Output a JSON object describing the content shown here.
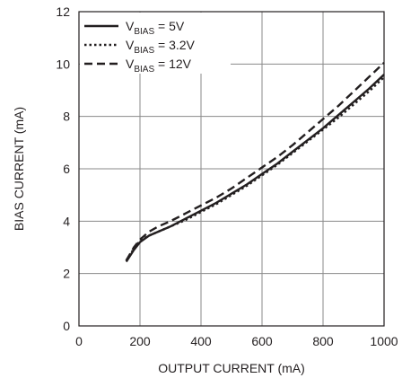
{
  "chart_data": {
    "type": "line",
    "title": "",
    "xlabel": "OUTPUT CURRENT (mA)",
    "ylabel": "BIAS CURRENT (mA)",
    "xlim": [
      0,
      1000
    ],
    "ylim": [
      0,
      12
    ],
    "xticks": [
      0,
      200,
      400,
      600,
      800,
      1000
    ],
    "yticks": [
      0,
      2,
      4,
      6,
      8,
      10,
      12
    ],
    "grid": true,
    "legend_position": "top-left",
    "series": [
      {
        "name": "VBIAS = 5V",
        "label_main": "V",
        "label_sub": "BIAS",
        "label_rest": " = 5V",
        "dash": "solid",
        "color": "#231f20",
        "x": [
          155,
          180,
          200,
          230,
          260,
          300,
          350,
          400,
          450,
          500,
          550,
          600,
          650,
          700,
          750,
          800,
          850,
          900,
          950,
          1000
        ],
        "y": [
          2.45,
          2.9,
          3.2,
          3.45,
          3.6,
          3.8,
          4.1,
          4.4,
          4.7,
          5.05,
          5.4,
          5.8,
          6.2,
          6.65,
          7.1,
          7.55,
          8.05,
          8.55,
          9.05,
          9.6
        ]
      },
      {
        "name": "VBIAS = 3.2V",
        "label_main": "V",
        "label_sub": "BIAS",
        "label_rest": " = 3.2V",
        "dash": "dotted",
        "color": "#231f20",
        "x": [
          155,
          180,
          200,
          230,
          260,
          300,
          350,
          400,
          450,
          500,
          550,
          600,
          650,
          700,
          750,
          800,
          850,
          900,
          950,
          1000
        ],
        "y": [
          2.5,
          2.95,
          3.25,
          3.45,
          3.6,
          3.8,
          4.05,
          4.35,
          4.65,
          5.0,
          5.35,
          5.75,
          6.15,
          6.6,
          7.05,
          7.5,
          7.95,
          8.45,
          8.95,
          9.5
        ]
      },
      {
        "name": "VBIAS = 12V",
        "label_main": "V",
        "label_sub": "BIAS",
        "label_rest": " = 12V",
        "dash": "dashed",
        "color": "#231f20",
        "x": [
          155,
          180,
          200,
          230,
          260,
          300,
          350,
          400,
          450,
          500,
          550,
          600,
          650,
          700,
          750,
          800,
          850,
          900,
          950,
          1000
        ],
        "y": [
          2.5,
          3.0,
          3.3,
          3.6,
          3.8,
          4.0,
          4.3,
          4.6,
          4.9,
          5.25,
          5.65,
          6.05,
          6.45,
          6.9,
          7.4,
          7.9,
          8.4,
          8.95,
          9.5,
          10.05
        ]
      }
    ]
  }
}
